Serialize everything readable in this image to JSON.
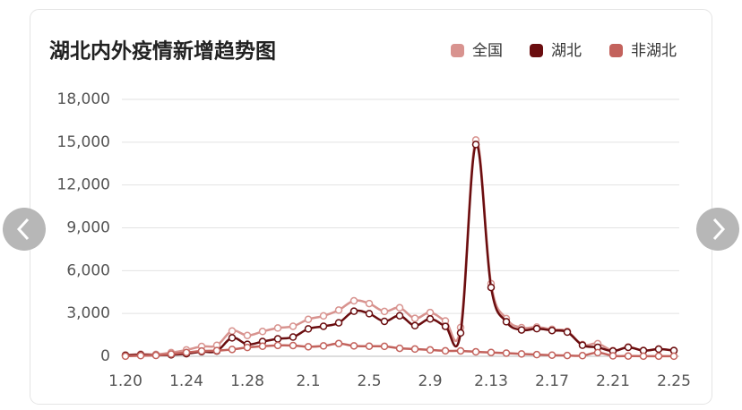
{
  "chart_data": {
    "type": "line",
    "title": "湖北内外疫情新增趋势图",
    "categories": [
      "1.20",
      null,
      null,
      null,
      "1.24",
      null,
      null,
      null,
      "1.28",
      null,
      null,
      null,
      "2.1",
      null,
      null,
      null,
      "2.5",
      null,
      null,
      null,
      "2.9",
      null,
      null,
      null,
      "2.13",
      null,
      null,
      null,
      "2.17",
      null,
      null,
      null,
      "2.21",
      null,
      null,
      null,
      "2.25"
    ],
    "series": [
      {
        "name": "全国",
        "color": "#d8938f",
        "values": [
          77,
          149,
          131,
          259,
          444,
          688,
          769,
          1771,
          1459,
          1737,
          1982,
          2102,
          2590,
          2829,
          3235,
          3887,
          3694,
          3143,
          3399,
          2656,
          3062,
          2478,
          2015,
          15152,
          5090,
          2641,
          2008,
          2048,
          1886,
          1749,
          820,
          889,
          397,
          648,
          409,
          508,
          406
        ]
      },
      {
        "name": "湖北",
        "color": "#6a0d0f",
        "values": [
          72,
          105,
          69,
          105,
          180,
          323,
          371,
          1291,
          840,
          1032,
          1220,
          1347,
          1921,
          2103,
          2345,
          3156,
          2987,
          2447,
          2841,
          2147,
          2618,
          2097,
          1638,
          14840,
          4823,
          2420,
          1843,
          1933,
          1807,
          1693,
          775,
          631,
          366,
          630,
          398,
          499,
          401
        ]
      },
      {
        "name": "非湖北",
        "color": "#c3625c",
        "values": [
          5,
          44,
          62,
          154,
          264,
          365,
          398,
          480,
          619,
          705,
          762,
          755,
          669,
          726,
          890,
          731,
          707,
          696,
          558,
          509,
          444,
          381,
          377,
          312,
          267,
          221,
          165,
          115,
          79,
          56,
          45,
          258,
          31,
          18,
          11,
          9,
          5
        ]
      }
    ],
    "ylim": [
      0,
      18000
    ],
    "yticks": [
      0,
      {
        "value": 3000,
        "label": "3,000"
      },
      {
        "value": 6000,
        "label": "6,000"
      },
      {
        "value": 9000,
        "label": "9,000"
      },
      {
        "value": 12000,
        "label": "12,000"
      },
      {
        "value": 15000,
        "label": "15,000"
      },
      {
        "value": 18000,
        "label": "18,000"
      }
    ],
    "grid": true
  }
}
